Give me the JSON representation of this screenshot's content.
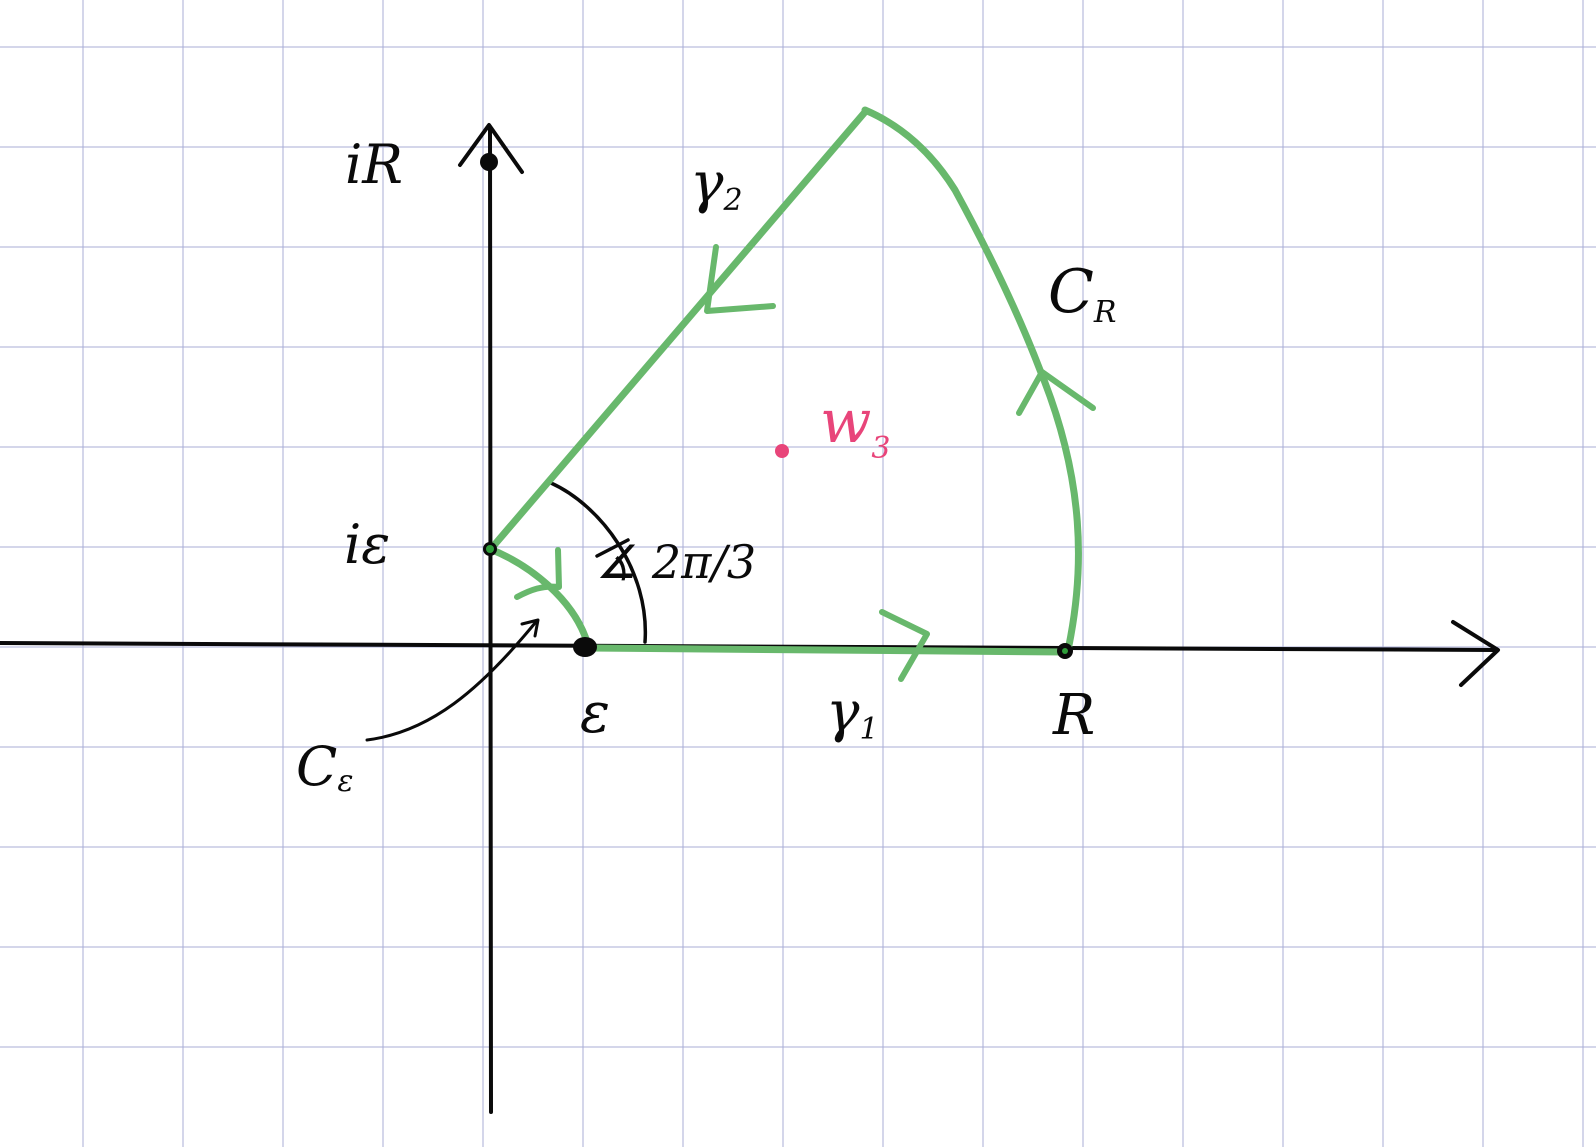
{
  "labels": {
    "iR": "iR",
    "i_epsilon": "iε",
    "epsilon": "ε",
    "R": "R",
    "gamma1_base": "γ",
    "gamma1_sub": "1",
    "gamma2_base": "γ",
    "gamma2_sub": "2",
    "CR_base": "C",
    "CR_sub": "R",
    "Ceps_base": "C",
    "Ceps_sub": "ε",
    "angle": "∡ 2π/3",
    "w3_base": "w",
    "w3_sub": "3"
  },
  "colors": {
    "grid": "#a8acd6",
    "ink": "#0a0a0a",
    "contour": "#68b86c",
    "pole": "#e8457a"
  }
}
